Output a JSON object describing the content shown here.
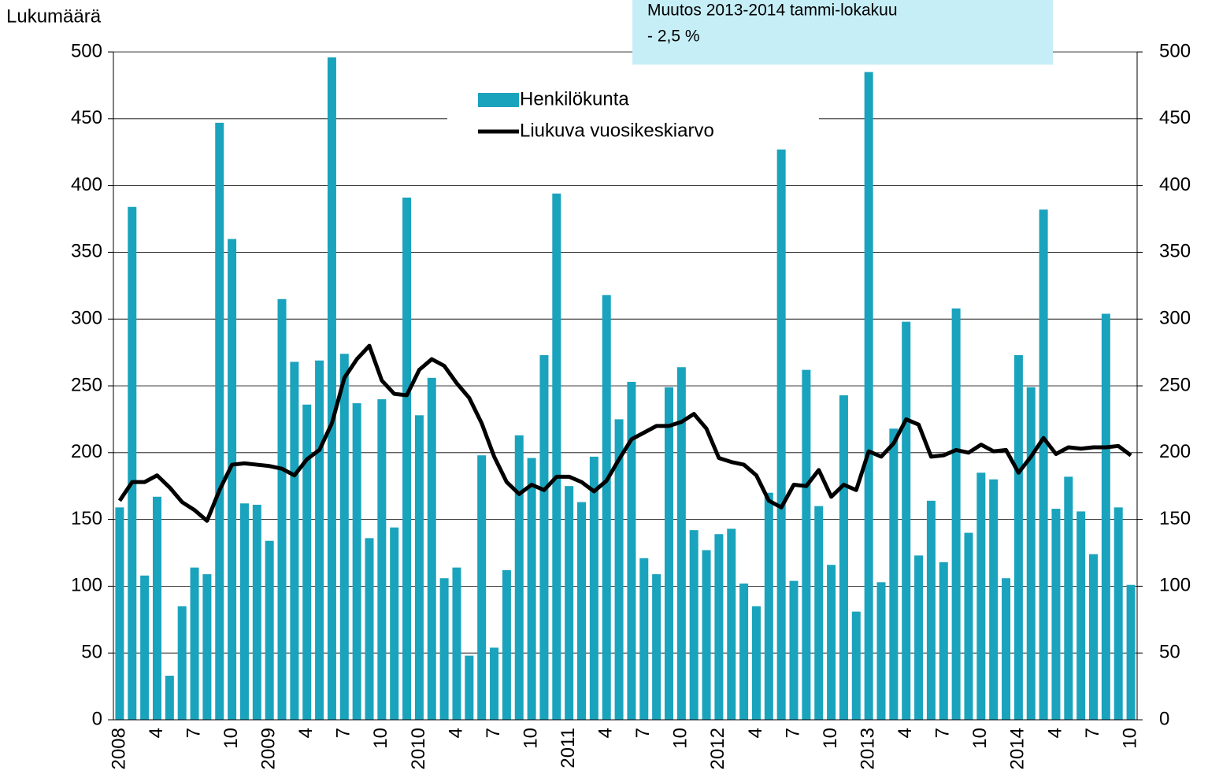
{
  "chart_data": {
    "type": "bar_line",
    "y_label": "Lukumäärä",
    "annotation": [
      "Muutos 2013-2014 tammi-lokakuu",
      "- 2,5 %"
    ],
    "categories": [
      "2008",
      null,
      null,
      "4",
      null,
      null,
      "7",
      null,
      null,
      "10",
      null,
      null,
      "2009",
      null,
      null,
      "4",
      null,
      null,
      "7",
      null,
      null,
      "10",
      null,
      null,
      "2010",
      null,
      null,
      "4",
      null,
      null,
      "7",
      null,
      null,
      "10",
      null,
      null,
      "2011",
      null,
      null,
      "4",
      null,
      null,
      "7",
      null,
      null,
      "10",
      null,
      null,
      "2012",
      null,
      null,
      "4",
      null,
      null,
      "7",
      null,
      null,
      "10",
      null,
      null,
      "2013",
      null,
      null,
      "4",
      null,
      null,
      "7",
      null,
      null,
      "10",
      null,
      null,
      "2014",
      null,
      null,
      "4",
      null,
      null,
      "7",
      null,
      null,
      "10"
    ],
    "series": [
      {
        "name": "Henkilökunta",
        "kind": "bar",
        "color": "#1aa3bd",
        "values": [
          159,
          384,
          108,
          167,
          33,
          85,
          114,
          109,
          447,
          360,
          162,
          161,
          134,
          315,
          268,
          236,
          269,
          496,
          274,
          237,
          136,
          240,
          144,
          391,
          228,
          256,
          106,
          114,
          48,
          198,
          54,
          112,
          213,
          196,
          273,
          394,
          175,
          163,
          197,
          318,
          225,
          253,
          121,
          109,
          249,
          264,
          142,
          127,
          139,
          143,
          102,
          85,
          170,
          427,
          104,
          262,
          160,
          116,
          243,
          81,
          485,
          103,
          218,
          298,
          123,
          164,
          118,
          308,
          140,
          185,
          180,
          106,
          273,
          249,
          382,
          158,
          182,
          156,
          124,
          304,
          159,
          101
        ]
      },
      {
        "name": "Liukuva vuosikeskiarvo",
        "kind": "line",
        "color": "#000000",
        "values": [
          164,
          178,
          178,
          183,
          174,
          163,
          157,
          149,
          172,
          191,
          192,
          191,
          190,
          188,
          183,
          195,
          202,
          222,
          256,
          270,
          280,
          254,
          244,
          243,
          262,
          270,
          265,
          252,
          241,
          222,
          197,
          178,
          169,
          176,
          172,
          182,
          182,
          178,
          171,
          179,
          195,
          210,
          215,
          220,
          220,
          223,
          229,
          218,
          196,
          193,
          191,
          183,
          164,
          159,
          176,
          175,
          187,
          167,
          176,
          172,
          201,
          197,
          207,
          225,
          221,
          197,
          198,
          202,
          200,
          206,
          201,
          202,
          185,
          197,
          211,
          199,
          204,
          203,
          204,
          204,
          205,
          198
        ]
      }
    ],
    "ylim": [
      0,
      500
    ],
    "yticks": [
      0,
      50,
      100,
      150,
      200,
      250,
      300,
      350,
      400,
      450,
      500
    ],
    "y2lim": [
      0,
      500
    ],
    "y2ticks": [
      0,
      50,
      100,
      150,
      200,
      250,
      300,
      350,
      400,
      450,
      500
    ],
    "grid": true
  }
}
